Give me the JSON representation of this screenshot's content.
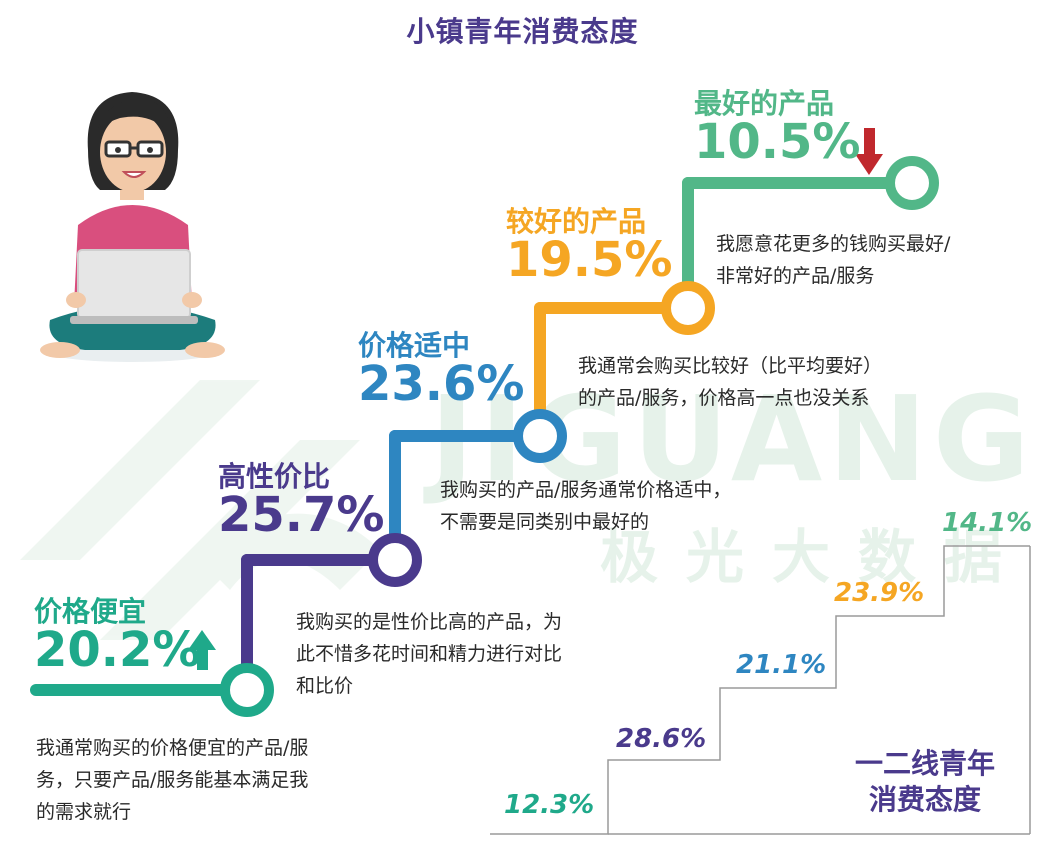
{
  "title": "小镇青年消费态度",
  "colors": {
    "title": "#4a3a8c",
    "cheap": "#1fa98a",
    "value": "#4a3a8c",
    "moderate": "#2e86c1",
    "better": "#f5a623",
    "best": "#52b788",
    "arrow_up": "#1fa98a",
    "arrow_down": "#c0282d"
  },
  "chart_data": [
    {
      "type": "bar",
      "title": "小镇青年消费态度",
      "categories": [
        "价格便宜",
        "高性价比",
        "价格适中",
        "较好的产品",
        "最好的产品"
      ],
      "values": [
        20.2,
        25.7,
        23.6,
        19.5,
        10.5
      ],
      "value_labels": [
        "20.2%",
        "25.7%",
        "23.6%",
        "19.5%",
        "10.5%"
      ],
      "unit": "%",
      "descriptions": [
        [
          "我通常购买的价格便宜的产品/服",
          "务，只要产品/服务能基本满足我",
          "的需求就行"
        ],
        [
          "我购买的是性价比高的产品，为",
          "此不惜多花时间和精力进行对比",
          "和比价"
        ],
        [
          "我购买的产品/服务通常价格适中，",
          "不需要是同类别中最好的"
        ],
        [
          "我通常会购买比较好（比平均要好）",
          "的产品/服务，价格高一点也没关系"
        ],
        [
          "我愿意花更多的钱购买最好/",
          "非常好的产品/服务"
        ]
      ],
      "indicators": [
        {
          "category": "价格便宜",
          "direction": "up"
        },
        {
          "category": "最好的产品",
          "direction": "down"
        }
      ]
    },
    {
      "type": "bar",
      "title": "一二线青年消费态度",
      "title_lines": [
        "一二线青年",
        "消费态度"
      ],
      "categories": [
        "价格便宜",
        "高性价比",
        "价格适中",
        "较好的产品",
        "最好的产品"
      ],
      "values": [
        12.3,
        28.6,
        21.1,
        23.9,
        14.1
      ],
      "value_labels": [
        "12.3%",
        "28.6%",
        "21.1%",
        "23.9%",
        "14.1%"
      ],
      "unit": "%"
    }
  ],
  "watermark": {
    "latin": "JIGUANG",
    "chinese": "极光大数据"
  }
}
